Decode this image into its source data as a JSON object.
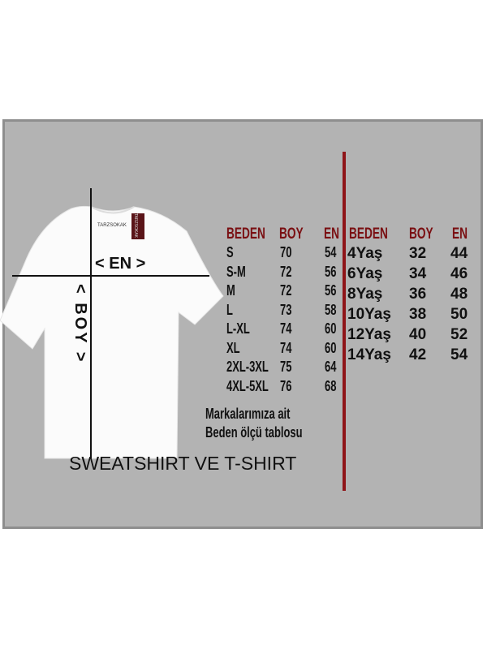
{
  "shirt": {
    "brand_label": "TARZSOKAK",
    "tag_text": "TARZSOKAK",
    "width_label": "< EN >",
    "length_label": "< BOY >"
  },
  "adult_table": {
    "headers": [
      "BEDEN",
      "BOY",
      "EN"
    ],
    "rows": [
      [
        "S",
        "70",
        "54"
      ],
      [
        "S-M",
        "72",
        "56"
      ],
      [
        "M",
        "72",
        "56"
      ],
      [
        "L",
        "73",
        "58"
      ],
      [
        "L-XL",
        "74",
        "60"
      ],
      [
        "XL",
        "74",
        "60"
      ],
      [
        "2XL-3XL",
        "75",
        "64"
      ],
      [
        "4XL-5XL",
        "76",
        "68"
      ]
    ]
  },
  "kids_table": {
    "headers": [
      "BEDEN",
      "BOY",
      "EN"
    ],
    "rows": [
      [
        "4Yaş",
        "32",
        "44"
      ],
      [
        "6Yaş",
        "34",
        "46"
      ],
      [
        "8Yaş",
        "36",
        "48"
      ],
      [
        "10Yaş",
        "38",
        "50"
      ],
      [
        "12Yaş",
        "40",
        "52"
      ],
      [
        "14Yaş",
        "42",
        "54"
      ]
    ]
  },
  "note_line1": "Markalarımıza ait",
  "note_line2": "Beden ölçü tablosu",
  "product_title": "SWEATSHIRT VE T-SHIRT",
  "colors": {
    "header": "#7a0f12",
    "divider": "#8f1418",
    "panel": "#b3b3b3"
  }
}
